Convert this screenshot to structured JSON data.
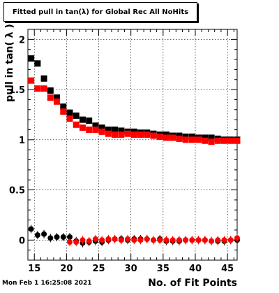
{
  "title": "Fitted pull in tan(λ) for Global Rec All NoHits",
  "timestamp": "Mon Feb  1 16:25:08 2021",
  "chart_data": {
    "type": "scatter",
    "title": "Fitted pull in tan(λ) for Global Rec All NoHits",
    "xlabel": "No. of Fit Points",
    "ylabel": "pull in tan( λ )",
    "xlim": [
      14,
      46.5
    ],
    "ylim": [
      -0.2,
      2.1
    ],
    "x_ticks": [
      15,
      20,
      25,
      30,
      35,
      40,
      45
    ],
    "x_tick_labels": [
      "15",
      "20",
      "25",
      "30",
      "35",
      "40",
      "45"
    ],
    "y_ticks": [
      0,
      0.5,
      1,
      1.5,
      2
    ],
    "y_tick_labels": [
      "0",
      "0.5",
      "1",
      "1.5",
      "2"
    ],
    "grid": true,
    "series": [
      {
        "color": "#000000",
        "marker": "square",
        "x": [
          14.5,
          15.5,
          16.5,
          17.5,
          18.5,
          19.5,
          20.5,
          21.5,
          22.5,
          23.5,
          24.5,
          25.5,
          26.5,
          27.5,
          28.5,
          29.5,
          30.5,
          31.5,
          32.5,
          33.5,
          34.5,
          35.5,
          36.5,
          37.5,
          38.5,
          39.5,
          40.5,
          41.5,
          42.5,
          43.5,
          44.5,
          45.5,
          46.5
        ],
        "values": [
          1.81,
          1.76,
          1.61,
          1.49,
          1.42,
          1.33,
          1.27,
          1.24,
          1.2,
          1.19,
          1.14,
          1.12,
          1.1,
          1.1,
          1.09,
          1.08,
          1.08,
          1.07,
          1.07,
          1.06,
          1.05,
          1.05,
          1.04,
          1.04,
          1.03,
          1.03,
          1.02,
          1.02,
          1.02,
          1.01,
          1.0,
          1.0,
          1.0
        ]
      },
      {
        "color": "#ff0000",
        "marker": "square",
        "x": [
          14.5,
          15.5,
          16.5,
          17.5,
          18.5,
          19.5,
          20.5,
          21.5,
          22.5,
          23.5,
          24.5,
          25.5,
          26.5,
          27.5,
          28.5,
          29.5,
          30.5,
          31.5,
          32.5,
          33.5,
          34.5,
          35.5,
          36.5,
          37.5,
          38.5,
          39.5,
          40.5,
          41.5,
          42.5,
          43.5,
          44.5,
          45.5,
          46.5
        ],
        "values": [
          1.59,
          1.51,
          1.51,
          1.42,
          1.38,
          1.28,
          1.21,
          1.15,
          1.12,
          1.1,
          1.1,
          1.08,
          1.06,
          1.05,
          1.05,
          1.06,
          1.05,
          1.05,
          1.05,
          1.04,
          1.03,
          1.02,
          1.02,
          1.01,
          1.0,
          1.0,
          1.0,
          0.99,
          0.98,
          0.99,
          0.99,
          0.99,
          0.99
        ]
      },
      {
        "color": "#000000",
        "marker": "circle",
        "x": [
          14.5,
          15.5,
          16.5,
          17.5,
          18.5,
          19.5,
          20.5,
          21.5,
          22.5,
          23.5,
          24.5,
          25.5,
          26.5,
          27.5,
          28.5,
          29.5,
          30.5,
          31.5,
          32.5,
          33.5,
          34.5,
          35.5,
          36.5,
          37.5,
          38.5,
          39.5,
          40.5,
          41.5,
          42.5,
          43.5,
          44.5,
          45.5,
          46.5
        ],
        "values": [
          0.11,
          0.05,
          0.06,
          0.02,
          0.03,
          0.03,
          0.03,
          -0.01,
          -0.03,
          -0.02,
          -0.01,
          -0.02,
          0.0,
          0.01,
          0.01,
          0.0,
          0.01,
          0.01,
          0.01,
          0.0,
          0.01,
          -0.01,
          -0.01,
          -0.01,
          0.0,
          0.0,
          0.0,
          0.0,
          -0.01,
          -0.01,
          -0.01,
          0.0,
          0.0
        ]
      },
      {
        "color": "#ff0000",
        "marker": "circle",
        "x": [
          20.5,
          21.5,
          22.5,
          23.5,
          24.5,
          25.5,
          26.5,
          27.5,
          28.5,
          29.5,
          30.5,
          31.5,
          32.5,
          33.5,
          34.5,
          35.5,
          36.5,
          37.5,
          38.5,
          39.5,
          40.5,
          41.5,
          42.5,
          43.5,
          44.5,
          45.5,
          46.5
        ],
        "values": [
          -0.02,
          -0.02,
          0.0,
          -0.01,
          0.01,
          0.0,
          0.01,
          0.01,
          0.0,
          0.01,
          0.0,
          0.0,
          0.01,
          0.0,
          0.0,
          0.0,
          0.0,
          0.0,
          0.0,
          0.0,
          0.0,
          0.0,
          -0.01,
          0.0,
          0.0,
          0.0,
          0.02
        ]
      }
    ]
  }
}
